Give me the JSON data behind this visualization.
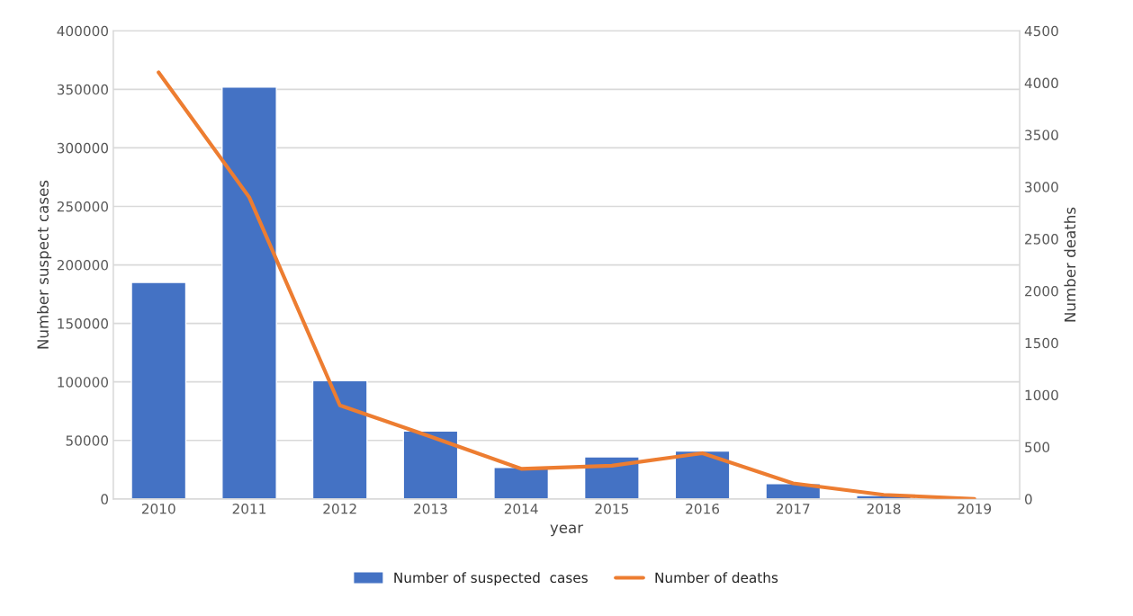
{
  "chart_data": {
    "type": "bar",
    "xlabel": "year",
    "ylabel": "Number suspect cases",
    "y2label": "Number deaths",
    "categories": [
      "2010",
      "2011",
      "2012",
      "2013",
      "2014",
      "2015",
      "2016",
      "2017",
      "2018",
      "2019"
    ],
    "series": [
      {
        "name": "Number of suspected  cases",
        "color": "#4472c4",
        "values": [
          185000,
          352000,
          101000,
          58000,
          27000,
          36000,
          41000,
          13000,
          3000,
          500
        ]
      },
      {
        "name": "Number of deaths",
        "type": "line",
        "axis": "y2",
        "color": "#ed7d31",
        "values": [
          4100,
          2900,
          900,
          600,
          290,
          320,
          440,
          150,
          40,
          0
        ]
      }
    ],
    "ylim": [
      0,
      400000
    ],
    "yticks": [
      0,
      50000,
      100000,
      150000,
      200000,
      250000,
      300000,
      350000,
      400000
    ],
    "y2lim": [
      0,
      4500
    ],
    "y2ticks": [
      0,
      500,
      1000,
      1500,
      2000,
      2500,
      3000,
      3500,
      4000,
      4500
    ],
    "grid": "y",
    "legend": "bottom",
    "marker": "none",
    "line_style": "solid"
  }
}
